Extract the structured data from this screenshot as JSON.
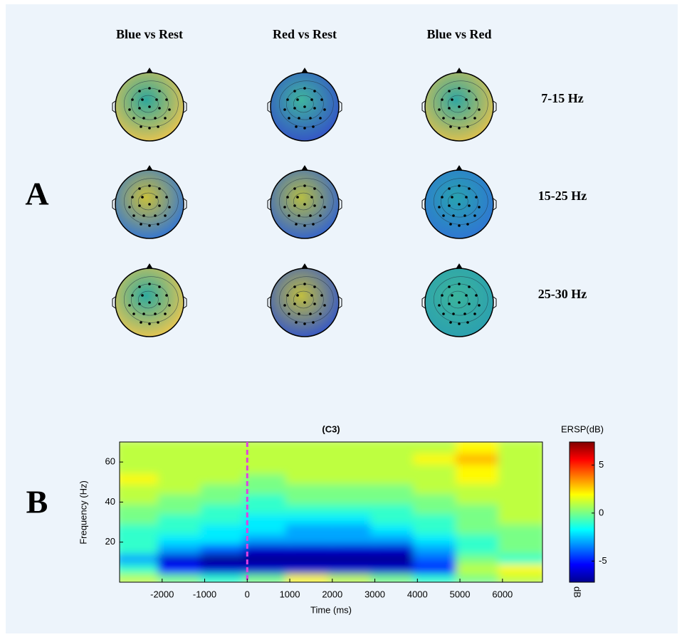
{
  "panel_a": {
    "label": "A",
    "columns": [
      "Blue vs Rest",
      "Red vs Rest",
      "Blue vs Red"
    ],
    "rows": [
      "7-15 Hz",
      "15-25 Hz",
      "25-30 Hz"
    ]
  },
  "panel_b_label": "B",
  "chart_data": {
    "type": "heatmap",
    "title": "(C3)",
    "x_label": "Time (ms)",
    "y_label": "Frequency (Hz)",
    "colorbar_label": "ERSP(dB)",
    "colorbar_unit": "dB",
    "colormap": "jet",
    "x_bins": [
      -3000,
      -2000,
      -1000,
      0,
      1000,
      2000,
      3000,
      4000,
      5000,
      6000,
      6940
    ],
    "y_bins": [
      0,
      5,
      10,
      15,
      20,
      25,
      30,
      35,
      40,
      45,
      50,
      55,
      60,
      65,
      70
    ],
    "values": [
      [
        1,
        0,
        -1,
        0,
        2,
        1,
        0,
        -1,
        0,
        1
      ],
      [
        -1,
        -5,
        -6,
        -6,
        -6,
        -6,
        -6,
        -5,
        1,
        2
      ],
      [
        -3,
        -6,
        -7,
        -7,
        -7,
        -7,
        -7,
        -4,
        0,
        -1
      ],
      [
        -1,
        -3,
        -4,
        -6,
        -6,
        -6,
        -6,
        -3,
        -1,
        0
      ],
      [
        -1,
        -2,
        -2,
        -3,
        -3,
        -3,
        -3,
        -2,
        -1,
        0
      ],
      [
        -1,
        -1,
        -2,
        -2,
        -3,
        -3,
        -2,
        -1,
        0,
        0
      ],
      [
        0,
        -1,
        -1,
        -2,
        -2,
        -2,
        -1,
        -1,
        0,
        1
      ],
      [
        0,
        0,
        -1,
        -1,
        -1,
        -1,
        -1,
        0,
        0,
        1
      ],
      [
        1,
        0,
        0,
        -1,
        0,
        0,
        0,
        0,
        1,
        1
      ],
      [
        1,
        1,
        0,
        0,
        0,
        0,
        0,
        1,
        1,
        1
      ],
      [
        2,
        1,
        1,
        0,
        1,
        1,
        1,
        1,
        2,
        1
      ],
      [
        1,
        1,
        1,
        1,
        1,
        1,
        1,
        1,
        2,
        1
      ],
      [
        1,
        1,
        1,
        1,
        1,
        1,
        1,
        2,
        3,
        1
      ],
      [
        1,
        1,
        1,
        1,
        1,
        1,
        1,
        1,
        2,
        1
      ]
    ],
    "xlim": [
      -3000,
      6940
    ],
    "ylim": [
      0,
      70
    ],
    "xticks": [
      -2000,
      -1000,
      0,
      1000,
      2000,
      3000,
      4000,
      5000,
      6000
    ],
    "yticks": [
      20,
      40,
      60
    ],
    "clim": [
      -7.2,
      7.4
    ],
    "cticks": [
      -5,
      0,
      5
    ],
    "event_line": {
      "x": 0,
      "color": "#e040e0"
    }
  }
}
